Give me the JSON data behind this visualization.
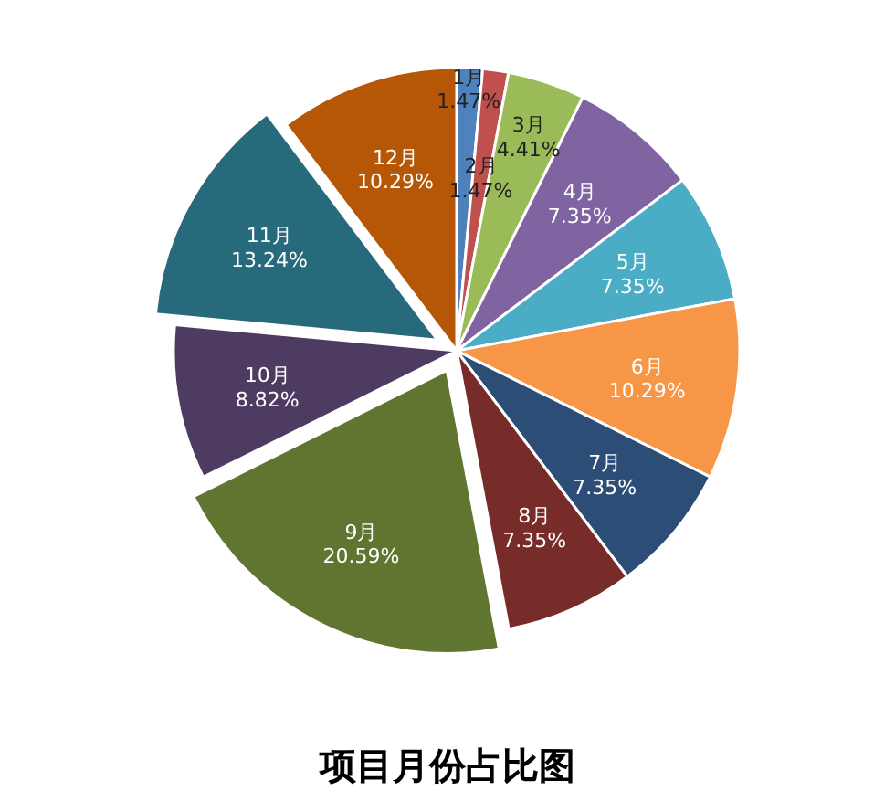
{
  "chart_data": {
    "type": "pie",
    "title": "项目月份占比图",
    "categories": [
      "1月",
      "2月",
      "3月",
      "4月",
      "5月",
      "6月",
      "7月",
      "8月",
      "9月",
      "10月",
      "11月",
      "12月"
    ],
    "values": [
      1.47,
      1.47,
      4.41,
      7.35,
      7.35,
      10.29,
      7.35,
      7.35,
      20.59,
      8.82,
      13.24,
      10.29
    ],
    "colors": [
      "#4f81bd",
      "#c0504d",
      "#9bbb59",
      "#8064a2",
      "#4bacc6",
      "#f79646",
      "#2c4d75",
      "#772c2a",
      "#5f7530",
      "#4d3b62",
      "#276a7c",
      "#b65708"
    ],
    "value_labels": [
      "1.47%",
      "1.47%",
      "4.41%",
      "7.35%",
      "7.35%",
      "10.29%",
      "7.35%",
      "7.35%",
      "20.59%",
      "8.82%",
      "13.24%",
      "10.29%"
    ]
  }
}
